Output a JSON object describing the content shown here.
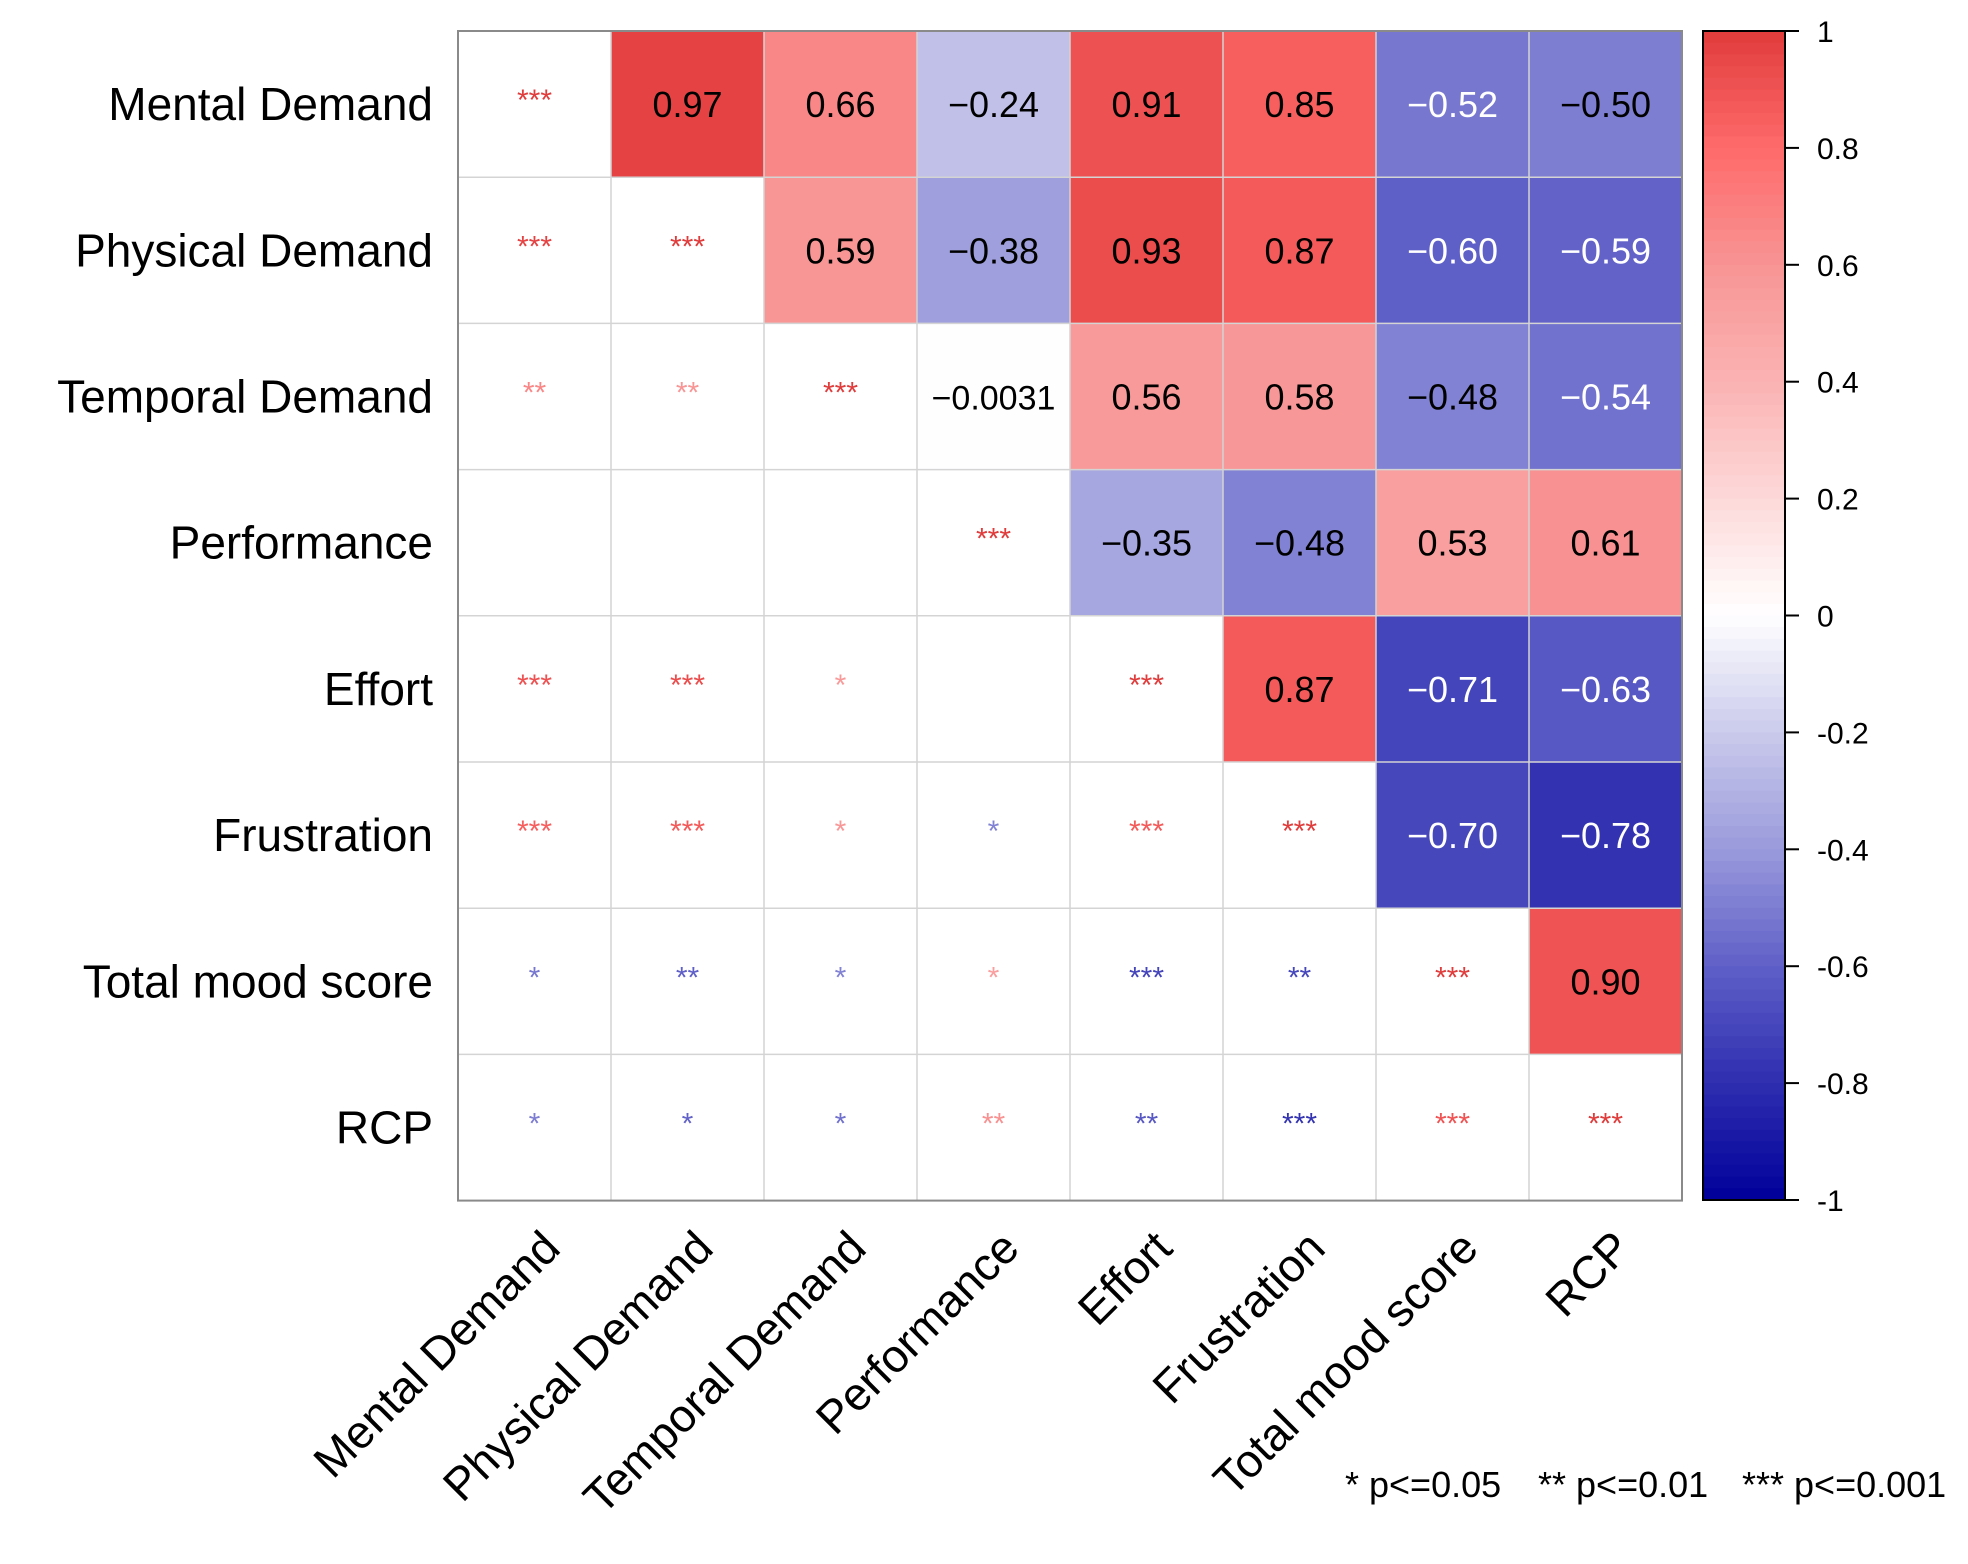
{
  "chart_data": {
    "type": "heatmap",
    "title": "",
    "variables": [
      "Mental Demand",
      "Physical Demand",
      "Temporal Demand",
      "Performance",
      "Effort",
      "Frustration",
      "Total mood score",
      "RCP"
    ],
    "upper_correlations": [
      [
        null,
        "0.97",
        "0.66",
        "−0.24",
        "0.91",
        "0.85",
        "−0.52",
        "−0.50"
      ],
      [
        null,
        null,
        "0.59",
        "−0.38",
        "0.93",
        "0.87",
        "−0.60",
        "−0.59"
      ],
      [
        null,
        null,
        null,
        "−0.0031",
        "0.56",
        "0.58",
        "−0.48",
        "−0.54"
      ],
      [
        null,
        null,
        null,
        null,
        "−0.35",
        "−0.48",
        "0.53",
        "0.61"
      ],
      [
        null,
        null,
        null,
        null,
        null,
        "0.87",
        "−0.71",
        "−0.63"
      ],
      [
        null,
        null,
        null,
        null,
        null,
        null,
        "−0.70",
        "−0.78"
      ],
      [
        null,
        null,
        null,
        null,
        null,
        null,
        null,
        "0.90"
      ],
      [
        null,
        null,
        null,
        null,
        null,
        null,
        null,
        null
      ]
    ],
    "lower_significance": [
      [
        "***"
      ],
      [
        "***",
        "***"
      ],
      [
        "**",
        "**",
        "***"
      ],
      [
        "",
        "",
        "",
        "***"
      ],
      [
        "***",
        "***",
        "*",
        "",
        "***"
      ],
      [
        "***",
        "***",
        "*",
        "*",
        "***",
        "***"
      ],
      [
        "*",
        "**",
        "*",
        "*",
        "***",
        "**",
        "***"
      ],
      [
        "*",
        "*",
        "*",
        "**",
        "**",
        "***",
        "***",
        "***"
      ]
    ],
    "colorbar": {
      "range": [
        -1,
        1
      ],
      "tick_labels": [
        "1",
        "0.8",
        "0.6",
        "0.4",
        "0.2",
        "0",
        "-0.2",
        "-0.4",
        "-0.6",
        "-0.8",
        "-1"
      ],
      "colors": {
        "neg": "#00009A",
        "zero": "#FFFFFF",
        "pos": "#E03C3C"
      }
    },
    "significance_legend": [
      "* p<=0.05",
      "** p<=0.01",
      "*** p<=0.001"
    ]
  }
}
